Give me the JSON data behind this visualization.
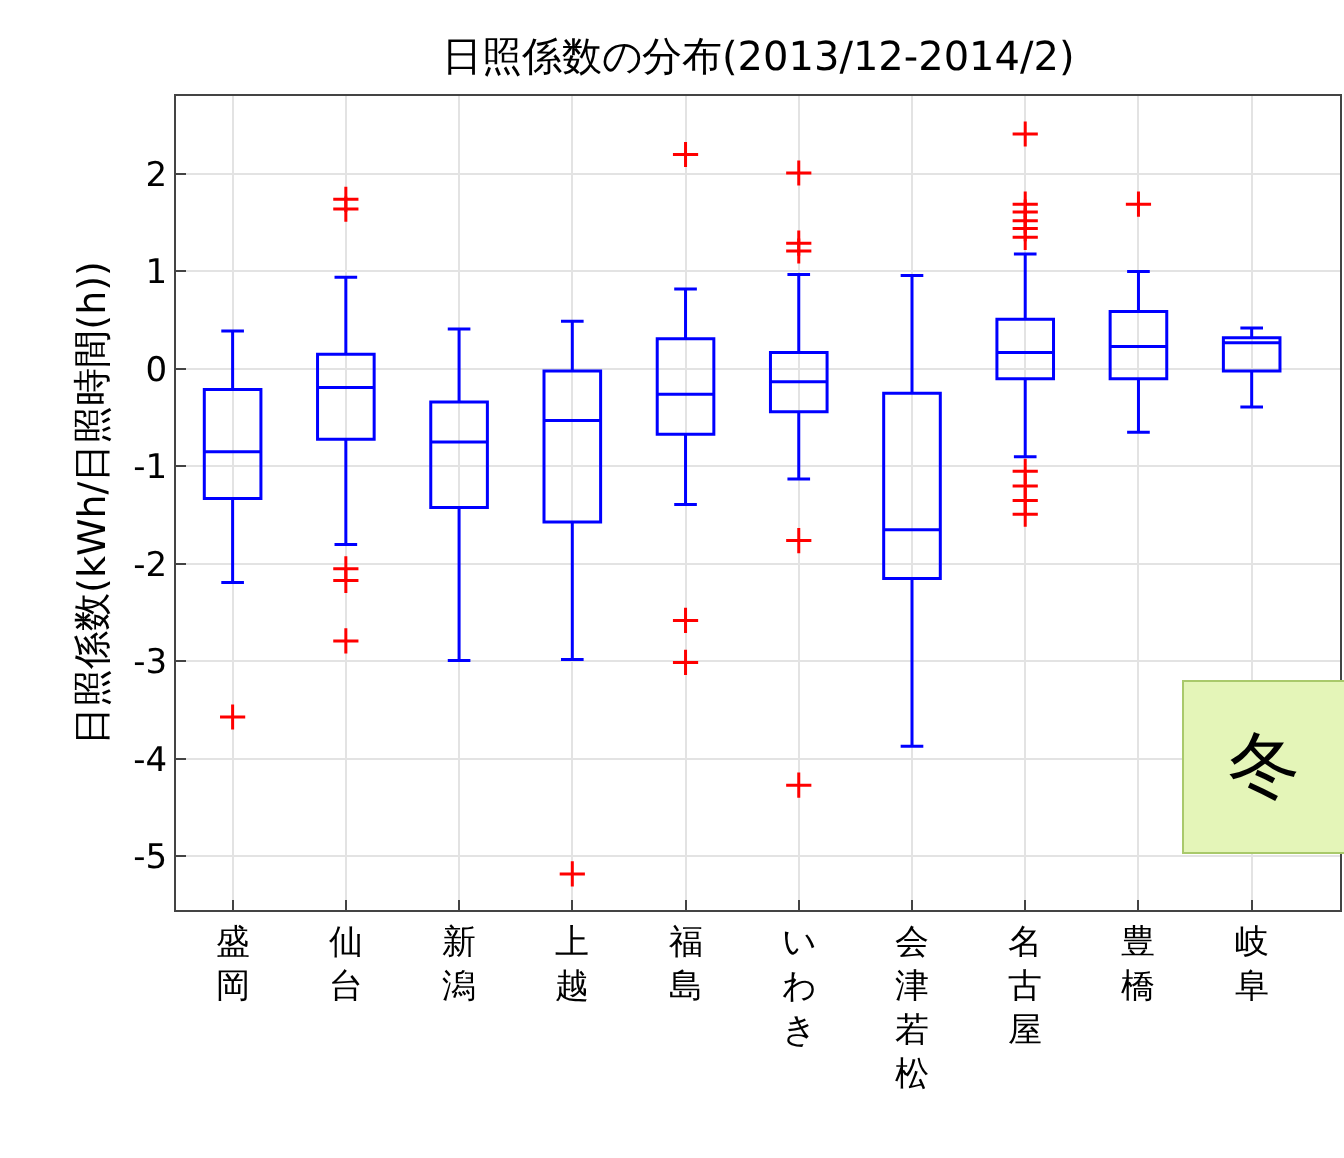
{
  "chart_data": {
    "type": "box",
    "title": "日照係数の分布(2013/12-2014/2)",
    "ylabel": "日照係数(kWh/日照時間(h))",
    "categories": [
      "盛岡",
      "仙台",
      "新潟",
      "上越",
      "福島",
      "いわき",
      "会津若松",
      "名古屋",
      "豊橋",
      "岐阜"
    ],
    "ylim": [
      -5.55,
      2.8
    ],
    "yticks": [
      -5,
      -4,
      -3,
      -2,
      -1,
      0,
      1,
      2
    ],
    "grid": true,
    "series": [
      {
        "color": "#0000ff",
        "boxes": [
          {
            "low": -2.19,
            "q1": -1.33,
            "median": -0.85,
            "q3": -0.21,
            "high": 0.39
          },
          {
            "low": -1.8,
            "q1": -0.72,
            "median": -0.19,
            "q3": 0.15,
            "high": 0.94
          },
          {
            "low": -2.99,
            "q1": -1.42,
            "median": -0.75,
            "q3": -0.34,
            "high": 0.41
          },
          {
            "low": -2.98,
            "q1": -1.57,
            "median": -0.53,
            "q3": -0.02,
            "high": 0.49
          },
          {
            "low": -1.39,
            "q1": -0.67,
            "median": -0.26,
            "q3": 0.31,
            "high": 0.82
          },
          {
            "low": -1.13,
            "q1": -0.44,
            "median": -0.13,
            "q3": 0.17,
            "high": 0.97
          },
          {
            "low": -3.87,
            "q1": -2.15,
            "median": -1.65,
            "q3": -0.25,
            "high": 0.96
          },
          {
            "low": -0.9,
            "q1": -0.1,
            "median": 0.17,
            "q3": 0.51,
            "high": 1.18
          },
          {
            "low": -0.65,
            "q1": -0.1,
            "median": 0.23,
            "q3": 0.59,
            "high": 1.0
          },
          {
            "low": -0.39,
            "q1": -0.02,
            "median": 0.27,
            "q3": 0.32,
            "high": 0.42
          }
        ]
      },
      {
        "type": "scatter",
        "color": "#ff0000",
        "marker": "cross",
        "x": [
          "盛岡",
          "仙台",
          "仙台",
          "仙台",
          "仙台",
          "仙台",
          "上越",
          "福島",
          "福島",
          "福島",
          "いわき",
          "いわき",
          "いわき",
          "いわき",
          "いわき",
          "名古屋",
          "名古屋",
          "名古屋",
          "名古屋",
          "名古屋",
          "名古屋",
          "名古屋",
          "名古屋",
          "名古屋",
          "名古屋",
          "豊橋"
        ],
        "values": [
          -3.57,
          1.74,
          1.64,
          -2.05,
          -2.17,
          -2.79,
          -5.18,
          2.2,
          -2.58,
          -3.01,
          2.01,
          1.29,
          1.21,
          -1.76,
          -4.27,
          2.41,
          1.69,
          1.61,
          1.52,
          1.44,
          1.35,
          -1.05,
          -1.2,
          -1.35,
          -1.49,
          1.69
        ]
      }
    ],
    "annotations": [
      "冬"
    ]
  }
}
